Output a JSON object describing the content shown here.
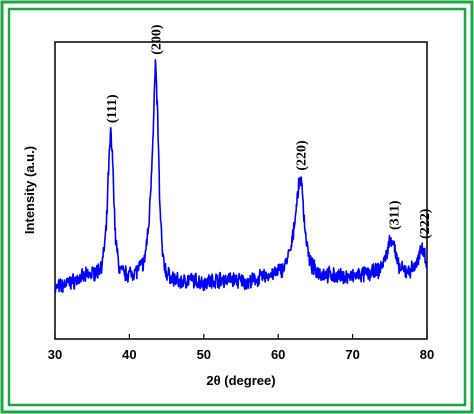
{
  "frame": {
    "border_color": "#1aa640"
  },
  "chart_data": {
    "type": "line",
    "title": "",
    "xlabel": "2θ (degree)",
    "ylabel": "Intensity (a.u.)",
    "xlim": [
      30,
      80
    ],
    "ylim": [
      0,
      100
    ],
    "x_ticks": [
      "30",
      "40",
      "50",
      "60",
      "70",
      "80"
    ],
    "y_ticks_shown": false,
    "grid": false,
    "series": [
      {
        "color": "#0000ff",
        "x": [
          30,
          31,
          32,
          33,
          34,
          35,
          35.8,
          36.4,
          36.9,
          37.2,
          37.5,
          37.8,
          38.1,
          38.6,
          39.3,
          40,
          41,
          42,
          42.6,
          43.0,
          43.3,
          43.5,
          43.8,
          44.1,
          44.5,
          45,
          46,
          47,
          48,
          50,
          52,
          54,
          56,
          58,
          59.5,
          60.8,
          61.8,
          62.4,
          62.8,
          63.0,
          63.2,
          63.6,
          64.2,
          65,
          66,
          68,
          70,
          72,
          73.5,
          74.4,
          74.9,
          75.2,
          75.5,
          75.8,
          76.2,
          76.8,
          77.5,
          78.3,
          78.9,
          79.3,
          79.6,
          79.8,
          80
        ],
        "y": [
          17,
          18,
          19,
          20,
          21,
          22,
          23,
          26,
          37,
          57,
          70,
          57,
          35,
          24,
          22,
          22,
          23,
          26,
          38,
          58,
          78,
          93,
          75,
          44,
          27,
          22,
          20,
          19,
          20,
          19,
          20,
          20,
          19,
          21,
          22,
          24,
          31,
          44,
          52,
          54,
          51,
          37,
          26,
          23,
          22,
          21,
          21,
          22,
          23,
          27,
          32,
          34,
          33,
          28,
          24,
          23,
          23,
          24,
          27,
          31,
          30,
          27,
          25
        ]
      }
    ],
    "annotations": [
      {
        "text": "(111)",
        "x": 37.5,
        "y": 70
      },
      {
        "text": "(200)",
        "x": 43.5,
        "y": 93
      },
      {
        "text": "(220)",
        "x": 63.0,
        "y": 54
      },
      {
        "text": "(311)",
        "x": 75.5,
        "y": 34
      },
      {
        "text": "(222)",
        "x": 79.6,
        "y": 31
      }
    ]
  }
}
